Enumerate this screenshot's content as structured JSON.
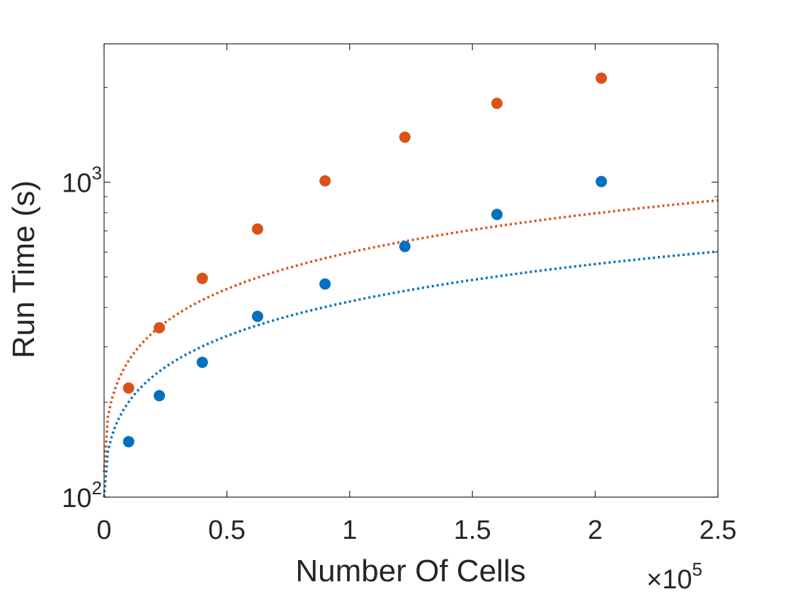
{
  "chart_data": {
    "type": "scatter",
    "title": "",
    "xlabel": "Number Of Cells",
    "ylabel": "Run Time (s)",
    "xlim": [
      0,
      250000
    ],
    "ylim": [
      100,
      2750
    ],
    "yscale": "log",
    "x_multiplier_label": "×10",
    "x_multiplier_exponent": "5",
    "x_ticks": [
      {
        "value": 0,
        "label": "0"
      },
      {
        "value": 50000,
        "label": "0.5"
      },
      {
        "value": 100000,
        "label": "1"
      },
      {
        "value": 150000,
        "label": "1.5"
      },
      {
        "value": 200000,
        "label": "2"
      },
      {
        "value": 250000,
        "label": "2.5"
      }
    ],
    "y_ticks": [
      {
        "value": 100,
        "base": "10",
        "exponent": "2"
      },
      {
        "value": 1000,
        "base": "10",
        "exponent": "3"
      }
    ],
    "y_minor_ticks": [
      200,
      300,
      400,
      500,
      600,
      700,
      800,
      900,
      2000
    ],
    "grid": false,
    "legend": "none",
    "series": [
      {
        "name": "series-blue",
        "color": "#0072BD",
        "x": [
          10000,
          22500,
          40000,
          62500,
          90000,
          122500,
          160000,
          202500
        ],
        "y": [
          150,
          210,
          268,
          375,
          475,
          625,
          790,
          1005
        ],
        "fit": {
          "a": 100,
          "b": 1.005
        }
      },
      {
        "name": "series-orange",
        "color": "#D95319",
        "x": [
          10000,
          22500,
          40000,
          62500,
          90000,
          122500,
          160000,
          202500
        ],
        "y": [
          222,
          345,
          495,
          710,
          1010,
          1390,
          1780,
          2140
        ],
        "fit": {
          "a": 120,
          "b": 1.26
        }
      }
    ]
  }
}
